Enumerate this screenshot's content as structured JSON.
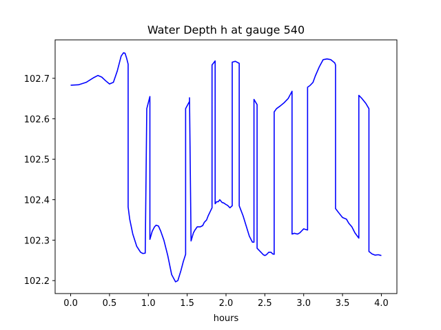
{
  "chart_data": {
    "type": "line",
    "title": "Water Depth h at gauge 540",
    "xlabel": "hours",
    "ylabel": "",
    "xlim": [
      -0.2,
      4.2
    ],
    "ylim": [
      102.168,
      102.795
    ],
    "xticks": [
      0.0,
      0.5,
      1.0,
      1.5,
      2.0,
      2.5,
      3.0,
      3.5,
      4.0
    ],
    "xtick_labels": [
      "0.0",
      "0.5",
      "1.0",
      "1.5",
      "2.0",
      "2.5",
      "3.0",
      "3.5",
      "4.0"
    ],
    "yticks": [
      102.2,
      102.3,
      102.4,
      102.5,
      102.6,
      102.7
    ],
    "ytick_labels": [
      "102.2",
      "102.3",
      "102.4",
      "102.5",
      "102.6",
      "102.7"
    ],
    "grid": false,
    "series": [
      {
        "color": "#0000ff",
        "x": [
          0.0,
          0.1,
          0.2,
          0.3,
          0.35,
          0.4,
          0.45,
          0.5,
          0.55,
          0.6,
          0.65,
          0.68,
          0.7,
          0.72,
          0.74,
          0.74,
          0.76,
          0.8,
          0.85,
          0.9,
          0.93,
          0.96,
          0.98,
          0.98,
          1.02,
          1.02,
          1.05,
          1.08,
          1.1,
          1.13,
          1.16,
          1.2,
          1.25,
          1.3,
          1.35,
          1.38,
          1.42,
          1.45,
          1.48,
          1.48,
          1.53,
          1.53,
          1.55,
          1.58,
          1.6,
          1.63,
          1.67,
          1.7,
          1.72,
          1.75,
          1.77,
          1.8,
          1.82,
          1.82,
          1.86,
          1.86,
          1.88,
          1.9,
          1.92,
          1.95,
          1.97,
          2.0,
          2.02,
          2.05,
          2.08,
          2.08,
          2.12,
          2.17,
          2.17,
          2.19,
          2.22,
          2.26,
          2.3,
          2.34,
          2.36,
          2.36,
          2.4,
          2.4,
          2.42,
          2.45,
          2.48,
          2.5,
          2.52,
          2.55,
          2.58,
          2.6,
          2.62,
          2.62,
          2.65,
          2.7,
          2.75,
          2.8,
          2.85,
          2.85,
          2.88,
          2.92,
          2.95,
          3.0,
          3.05,
          3.05,
          3.08,
          3.12,
          3.15,
          3.2,
          3.25,
          3.3,
          3.35,
          3.4,
          3.41,
          3.41,
          3.45,
          3.5,
          3.55,
          3.58,
          3.62,
          3.66,
          3.71,
          3.71,
          3.75,
          3.8,
          3.84,
          3.84,
          3.88,
          3.92,
          3.96,
          4.0
        ],
        "values": [
          102.683,
          102.684,
          102.69,
          102.702,
          102.707,
          102.703,
          102.694,
          102.686,
          102.69,
          102.718,
          102.755,
          102.763,
          102.762,
          102.75,
          102.735,
          102.382,
          102.352,
          102.315,
          102.285,
          102.27,
          102.267,
          102.268,
          102.625,
          102.625,
          102.655,
          102.302,
          102.322,
          102.333,
          102.337,
          102.335,
          102.322,
          102.3,
          102.262,
          102.215,
          102.197,
          102.2,
          102.225,
          102.247,
          102.265,
          102.625,
          102.643,
          102.652,
          102.298,
          102.318,
          102.325,
          102.333,
          102.333,
          102.336,
          102.344,
          102.35,
          102.36,
          102.372,
          102.38,
          102.733,
          102.743,
          102.39,
          102.395,
          102.395,
          102.4,
          102.393,
          102.392,
          102.388,
          102.386,
          102.38,
          102.385,
          102.74,
          102.742,
          102.737,
          102.385,
          102.375,
          102.36,
          102.335,
          102.31,
          102.295,
          102.295,
          102.648,
          102.635,
          102.28,
          102.276,
          102.27,
          102.264,
          102.262,
          102.264,
          102.27,
          102.27,
          102.266,
          102.265,
          102.617,
          102.625,
          102.632,
          102.64,
          102.65,
          102.668,
          102.315,
          102.317,
          102.315,
          102.318,
          102.328,
          102.325,
          102.678,
          102.682,
          102.69,
          102.706,
          102.728,
          102.746,
          102.748,
          102.746,
          102.738,
          102.733,
          102.378,
          102.368,
          102.356,
          102.352,
          102.342,
          102.333,
          102.318,
          102.305,
          102.658,
          102.65,
          102.638,
          102.625,
          102.272,
          102.266,
          102.263,
          102.264,
          102.262
        ]
      }
    ]
  }
}
